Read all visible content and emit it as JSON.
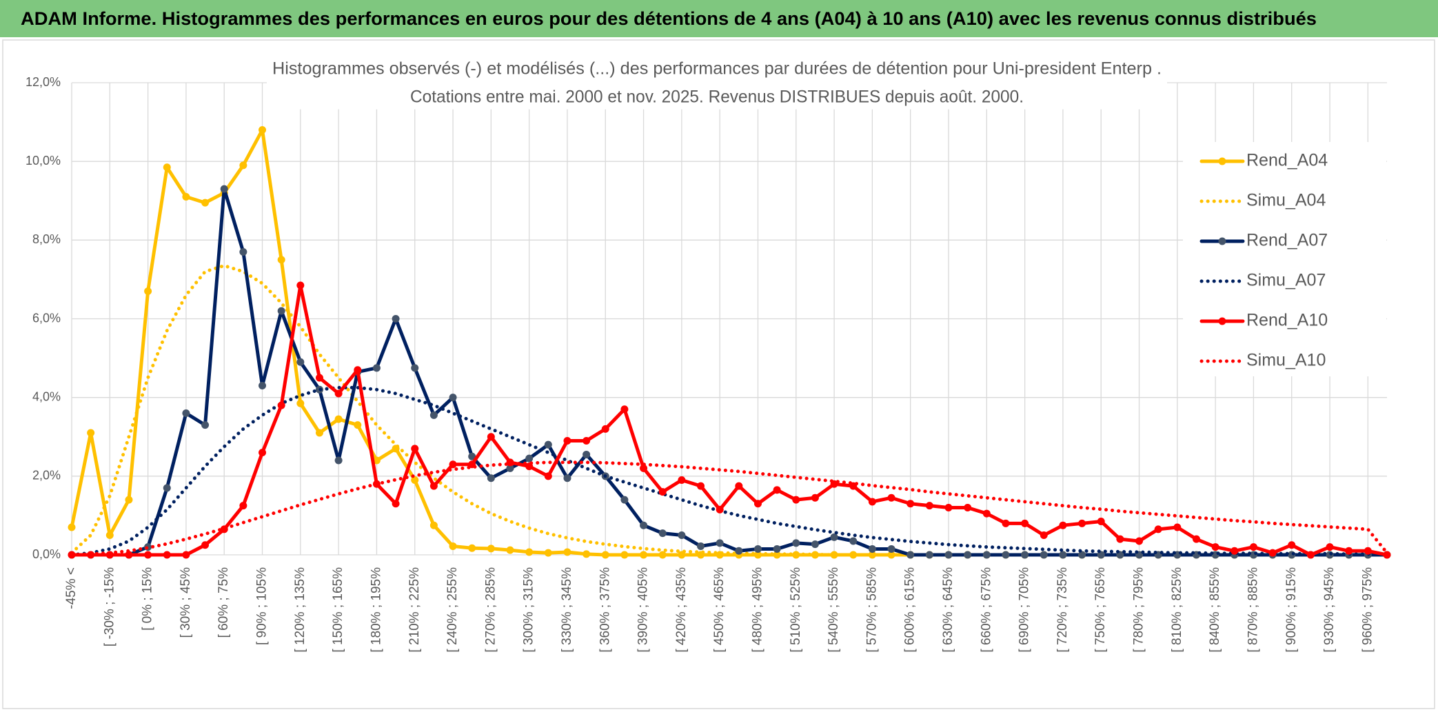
{
  "header": {
    "title": "ADAM Informe. Histogrammes des performances en euros pour des détentions de 4 ans (A04) à 10 ans (A10) avec les revenus connus distribués"
  },
  "chart_data": {
    "type": "line",
    "title": "Histogrammes observés (-) et modélisés (...) des performances par durées de détention pour Uni-president Enterp .",
    "subtitle": "Cotations entre mai. 2000 et nov. 2025. Revenus DISTRIBUES depuis août. 2000.",
    "categories": [
      "-45% <",
      null,
      "[ -30% ; -15%",
      null,
      "[ 0% ; 15%",
      null,
      "[ 30% ; 45%",
      null,
      "[ 60% ; 75%",
      null,
      "[ 90% ; 105%",
      null,
      "[ 120% ; 135%",
      null,
      "[ 150% ; 165%",
      null,
      "[ 180% ; 195%",
      null,
      "[ 210% ; 225%",
      null,
      "[ 240% ; 255%",
      null,
      "[ 270% ; 285%",
      null,
      "[ 300% ; 315%",
      null,
      "[ 330% ; 345%",
      null,
      "[ 360% ; 375%",
      null,
      "[ 390% ; 405%",
      null,
      "[ 420% ; 435%",
      null,
      "[ 450% ; 465%",
      null,
      "[ 480% ; 495%",
      null,
      "[ 510% ; 525%",
      null,
      "[ 540% ; 555%",
      null,
      "[ 570% ; 585%",
      null,
      "[ 600% ; 615%",
      null,
      "[ 630% ; 645%",
      null,
      "[ 660% ; 675%",
      null,
      "[ 690% ; 705%",
      null,
      "[ 720% ; 735%",
      null,
      "[ 750% ; 765%",
      null,
      "[ 780% ; 795%",
      null,
      "[ 810% ; 825%",
      null,
      "[ 840% ; 855%",
      null,
      "[ 870% ; 885%",
      null,
      "[ 900% ; 915%",
      null,
      "[ 930% ; 945%",
      null,
      "[ 960% ; 975%",
      null
    ],
    "series": [
      {
        "name": "Rend_A04",
        "color": "#ffc000",
        "style": "solid",
        "marker_color": "#ffc000",
        "values": [
          0.7,
          3.1,
          0.5,
          1.4,
          6.7,
          9.85,
          9.1,
          8.95,
          9.2,
          9.9,
          10.8,
          7.5,
          3.85,
          3.1,
          3.45,
          3.3,
          2.4,
          2.7,
          1.9,
          0.75,
          0.22,
          0.17,
          0.16,
          0.12,
          0.07,
          0.05,
          0.07,
          0.02,
          0,
          0,
          0,
          0,
          0,
          0,
          0,
          0,
          0,
          0,
          0,
          0,
          0,
          0,
          0,
          0,
          0,
          0,
          0,
          0,
          0,
          0,
          0,
          0,
          0,
          0,
          0,
          0,
          0,
          0,
          0,
          0,
          0,
          0,
          0,
          0,
          0,
          0,
          0,
          0,
          0,
          0
        ]
      },
      {
        "name": "Simu_A04",
        "color": "#ffc000",
        "style": "dotted",
        "values": [
          0.05,
          0.5,
          1.5,
          3.0,
          4.5,
          5.7,
          6.6,
          7.2,
          7.35,
          7.2,
          6.9,
          6.4,
          5.8,
          5.1,
          4.5,
          3.9,
          3.3,
          2.8,
          2.35,
          1.95,
          1.6,
          1.3,
          1.05,
          0.85,
          0.68,
          0.54,
          0.43,
          0.34,
          0.27,
          0.21,
          0.16,
          0.12,
          0.09,
          0.07,
          0.05,
          0.04,
          0.03,
          0.02,
          0.02,
          0.01,
          0,
          0,
          0,
          0,
          0,
          0,
          0,
          0,
          0,
          0,
          0,
          0,
          0,
          0,
          0,
          0,
          0,
          0,
          0,
          0,
          0,
          0,
          0,
          0,
          0,
          0,
          0,
          0,
          0,
          0
        ]
      },
      {
        "name": "Rend_A07",
        "color": "#002060",
        "style": "solid",
        "marker_color": "#44546a",
        "values": [
          0,
          0,
          0,
          0,
          0.2,
          1.7,
          3.6,
          3.3,
          9.3,
          7.7,
          4.3,
          6.2,
          4.9,
          4.2,
          2.4,
          4.65,
          4.75,
          6.0,
          4.75,
          3.55,
          4.0,
          2.5,
          1.95,
          2.2,
          2.45,
          2.8,
          1.95,
          2.55,
          2.0,
          1.4,
          0.75,
          0.55,
          0.5,
          0.22,
          0.3,
          0.1,
          0.15,
          0.15,
          0.3,
          0.27,
          0.45,
          0.35,
          0.15,
          0.15,
          0,
          0,
          0,
          0,
          0,
          0,
          0,
          0,
          0,
          0,
          0,
          0,
          0,
          0,
          0,
          0,
          0,
          0,
          0,
          0,
          0,
          0,
          0,
          0,
          0,
          0
        ]
      },
      {
        "name": "Simu_A07",
        "color": "#002060",
        "style": "dotted",
        "values": [
          0,
          0.05,
          0.15,
          0.35,
          0.7,
          1.15,
          1.7,
          2.25,
          2.75,
          3.2,
          3.55,
          3.85,
          4.05,
          4.2,
          4.25,
          4.25,
          4.2,
          4.1,
          3.95,
          3.8,
          3.6,
          3.4,
          3.2,
          3.0,
          2.8,
          2.6,
          2.4,
          2.2,
          2.0,
          1.85,
          1.7,
          1.55,
          1.4,
          1.25,
          1.12,
          1.0,
          0.9,
          0.8,
          0.72,
          0.64,
          0.57,
          0.5,
          0.44,
          0.39,
          0.34,
          0.3,
          0.26,
          0.23,
          0.2,
          0.18,
          0.16,
          0.14,
          0.12,
          0.1,
          0.09,
          0.08,
          0.07,
          0.06,
          0.05,
          0.05,
          0.04,
          0.04,
          0.04,
          0.03,
          0.03,
          0.03,
          0.03,
          0.02,
          0.02,
          0.01
        ]
      },
      {
        "name": "Rend_A10",
        "color": "#ff0000",
        "style": "solid",
        "marker_color": "#ff0000",
        "values": [
          0,
          0,
          0,
          0,
          0,
          0,
          0,
          0.25,
          0.65,
          1.25,
          2.6,
          3.8,
          6.85,
          4.5,
          4.1,
          4.7,
          1.8,
          1.3,
          2.7,
          1.75,
          2.3,
          2.3,
          3.0,
          2.35,
          2.25,
          2.0,
          2.9,
          2.9,
          3.2,
          3.7,
          2.2,
          1.6,
          1.9,
          1.75,
          1.15,
          1.75,
          1.3,
          1.65,
          1.4,
          1.45,
          1.8,
          1.75,
          1.35,
          1.45,
          1.3,
          1.25,
          1.2,
          1.2,
          1.05,
          0.8,
          0.8,
          0.5,
          0.75,
          0.8,
          0.85,
          0.4,
          0.35,
          0.65,
          0.7,
          0.4,
          0.2,
          0.1,
          0.2,
          0.05,
          0.25,
          0.0,
          0.2,
          0.1,
          0.1,
          0
        ]
      },
      {
        "name": "Simu_A10",
        "color": "#ff0000",
        "style": "dotted",
        "values": [
          0,
          0.02,
          0.05,
          0.1,
          0.18,
          0.28,
          0.4,
          0.53,
          0.67,
          0.82,
          0.97,
          1.12,
          1.27,
          1.41,
          1.55,
          1.68,
          1.8,
          1.91,
          2.01,
          2.1,
          2.17,
          2.23,
          2.28,
          2.31,
          2.33,
          2.35,
          2.35,
          2.35,
          2.34,
          2.32,
          2.3,
          2.27,
          2.24,
          2.2,
          2.16,
          2.12,
          2.07,
          2.02,
          1.97,
          1.92,
          1.87,
          1.82,
          1.76,
          1.71,
          1.66,
          1.6,
          1.55,
          1.5,
          1.45,
          1.4,
          1.35,
          1.3,
          1.25,
          1.2,
          1.16,
          1.11,
          1.07,
          1.03,
          0.99,
          0.95,
          0.91,
          0.87,
          0.84,
          0.8,
          0.77,
          0.74,
          0.71,
          0.68,
          0.65,
          0.05
        ]
      }
    ],
    "ylim": [
      0,
      12
    ],
    "yticks": [
      {
        "value": 0,
        "label": "0,0%"
      },
      {
        "value": 2,
        "label": "2,0%"
      },
      {
        "value": 4,
        "label": "4,0%"
      },
      {
        "value": 6,
        "label": "6,0%"
      },
      {
        "value": 8,
        "label": "8,0%"
      },
      {
        "value": 10,
        "label": "10,0%"
      },
      {
        "value": 12,
        "label": "12,0%"
      }
    ],
    "grid": true,
    "legend": "right"
  }
}
